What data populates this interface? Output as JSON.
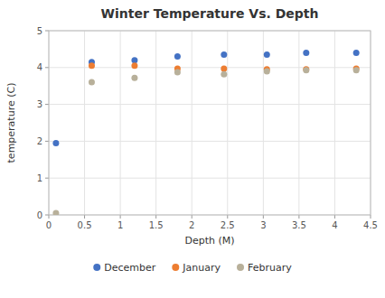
{
  "chart_data": {
    "type": "scatter",
    "title": "Winter Temperature Vs. Depth",
    "xlabel": "Depth (M)",
    "ylabel": "temperature (C)",
    "xlim": [
      0,
      4.5
    ],
    "ylim": [
      0,
      5
    ],
    "xticks": [
      0,
      0.5,
      1,
      1.5,
      2,
      2.5,
      3,
      3.5,
      4,
      4.5
    ],
    "yticks": [
      0,
      1,
      2,
      3,
      4,
      5
    ],
    "grid": true,
    "legend": "bottom",
    "series": [
      {
        "name": "December",
        "color": "#4472C4",
        "marker": "o",
        "x": [
          0.1,
          0.6,
          1.2,
          1.8,
          2.45,
          3.05,
          3.6,
          4.3
        ],
        "values": [
          1.95,
          4.15,
          4.2,
          4.3,
          4.35,
          4.35,
          4.4,
          4.4
        ]
      },
      {
        "name": "January",
        "color": "#ED7D31",
        "marker": "o",
        "x": [
          0.6,
          1.2,
          1.8,
          2.45,
          3.05,
          3.6,
          4.3
        ],
        "values": [
          4.05,
          4.05,
          3.97,
          3.97,
          3.95,
          3.95,
          3.97
        ]
      },
      {
        "name": "February",
        "color": "#B8B09A",
        "marker": "o",
        "x": [
          0.1,
          0.6,
          1.2,
          1.8,
          2.45,
          3.05,
          3.6,
          4.3
        ],
        "values": [
          0.05,
          3.6,
          3.72,
          3.87,
          3.82,
          3.9,
          3.93,
          3.93
        ]
      }
    ]
  }
}
